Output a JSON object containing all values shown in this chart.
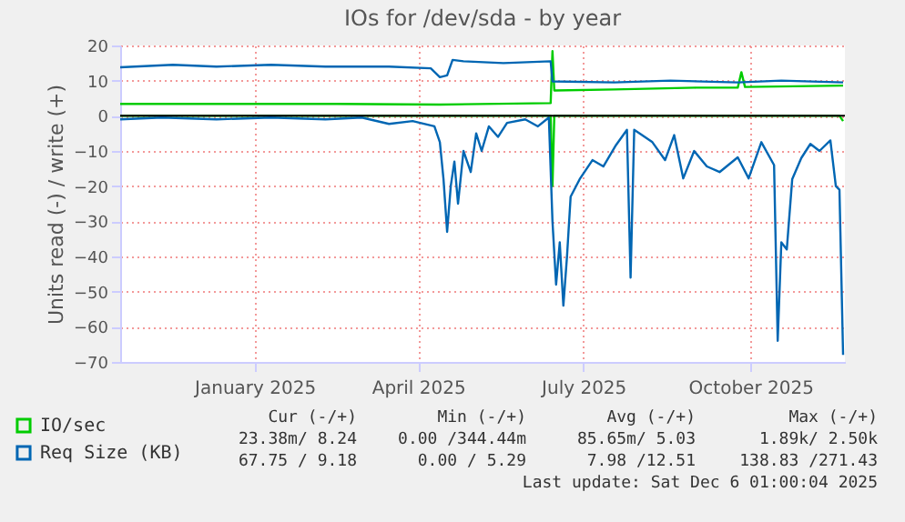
{
  "chart_data": {
    "type": "line",
    "title": "IOs for /dev/sda - by year",
    "ylabel": "Units read (-) / write (+)",
    "xlim": [
      "2024-11-02",
      "2025-12-06"
    ],
    "xticks": [
      {
        "value": "2025-01-15",
        "label": "January 2025"
      },
      {
        "value": "2025-04-15",
        "label": "April 2025"
      },
      {
        "value": "2025-07-15",
        "label": "July 2025"
      },
      {
        "value": "2025-10-15",
        "label": "October 2025"
      }
    ],
    "ylim": [
      -70,
      20
    ],
    "yticks": [
      -70,
      -60,
      -50,
      -40,
      -30,
      -20,
      -10,
      0,
      10,
      20
    ],
    "grid": true,
    "legend": "bottom",
    "marker": "none",
    "line_style": "solid",
    "ref_lines": [
      {
        "axis": "y",
        "value": 0,
        "color": "#000000"
      }
    ],
    "series": [
      {
        "name": "IO/sec",
        "color": "#00cc00",
        "x": [
          "2024-11-02",
          "2025-03-01",
          "2025-04-27",
          "2025-06-27",
          "2025-06-28",
          "2025-06-29",
          "2025-08-01",
          "2025-09-15",
          "2025-10-08",
          "2025-10-10",
          "2025-10-12",
          "2025-12-05"
        ],
        "values": [
          3.4,
          3.4,
          3.2,
          3.6,
          18.4,
          7.2,
          7.5,
          8,
          8,
          12.4,
          8.2,
          8.6
        ]
      },
      {
        "color": "#00cc00",
        "x": [
          "2024-11-02",
          "2025-06-27",
          "2025-06-28",
          "2025-06-29",
          "2025-12-03",
          "2025-12-05"
        ],
        "values": [
          0,
          0,
          -20,
          0,
          0,
          -1.5
        ]
      },
      {
        "name": "Req Size (KB)",
        "color": "#0066b3",
        "x": [
          "2024-11-02",
          "2024-12-01",
          "2024-12-25",
          "2025-01-24",
          "2025-02-23",
          "2025-03-30",
          "2025-04-22",
          "2025-04-27",
          "2025-05-01",
          "2025-05-04",
          "2025-05-10",
          "2025-06-01",
          "2025-06-27",
          "2025-06-28",
          "2025-08-01",
          "2025-09-01",
          "2025-10-08",
          "2025-11-01",
          "2025-12-05"
        ],
        "values": [
          13.8,
          14.5,
          14,
          14.5,
          14,
          14,
          13.5,
          11,
          11.5,
          15.9,
          15.5,
          15,
          15.5,
          9.8,
          9.5,
          10,
          9.5,
          10,
          9.5
        ]
      },
      {
        "color": "#0066b3",
        "x": [
          "2024-11-02",
          "2024-11-25",
          "2024-12-25",
          "2025-01-24",
          "2025-02-23",
          "2025-03-15",
          "2025-03-30",
          "2025-04-12",
          "2025-04-24",
          "2025-04-27",
          "2025-04-29",
          "2025-05-01",
          "2025-05-03",
          "2025-05-05",
          "2025-05-07",
          "2025-05-10",
          "2025-05-14",
          "2025-05-17",
          "2025-05-20",
          "2025-05-24",
          "2025-05-29",
          "2025-06-03",
          "2025-06-13",
          "2025-06-20",
          "2025-06-26",
          "2025-06-28",
          "2025-06-30",
          "2025-07-02",
          "2025-07-04",
          "2025-07-06",
          "2025-07-08",
          "2025-07-13",
          "2025-07-20",
          "2025-07-26",
          "2025-08-02",
          "2025-08-08",
          "2025-08-10",
          "2025-08-12",
          "2025-08-15",
          "2025-08-22",
          "2025-08-29",
          "2025-09-03",
          "2025-09-08",
          "2025-09-14",
          "2025-09-21",
          "2025-09-28",
          "2025-10-08",
          "2025-10-14",
          "2025-10-21",
          "2025-10-28",
          "2025-10-30",
          "2025-11-01",
          "2025-11-04",
          "2025-11-07",
          "2025-11-12",
          "2025-11-17",
          "2025-11-22",
          "2025-11-28",
          "2025-12-01",
          "2025-12-03",
          "2025-12-05"
        ],
        "values": [
          -1,
          -0.5,
          -1,
          -0.5,
          -1,
          -0.5,
          -2.3,
          -1.5,
          -3,
          -7.5,
          -18,
          -33,
          -20,
          -13,
          -25,
          -10,
          -16,
          -5,
          -10,
          -3,
          -6,
          -2,
          -1,
          -3,
          -0.5,
          -30,
          -48,
          -36,
          -54,
          -40,
          -23,
          -18,
          -12.6,
          -14.4,
          -8.3,
          -4,
          -46,
          -4,
          -5,
          -7.5,
          -12.6,
          -5.5,
          -17.8,
          -10,
          -14.4,
          -16,
          -11.8,
          -17.8,
          -7.5,
          -14,
          -64,
          -36,
          -38,
          -18,
          -12,
          -8,
          -10,
          -7,
          -20,
          -21,
          -68
        ]
      }
    ],
    "annotations": [
      "Cur (-/+)",
      "Min (-/+)",
      "Avg (-/+)",
      "Max (-/+)",
      "23.38m/ 8.24",
      "0.00 /344.44m",
      "85.65m/ 5.03",
      "1.89k/ 2.50k",
      "67.75 / 9.18",
      "0.00 / 5.29",
      "7.98 /12.51",
      "138.83 /271.43",
      "Last update: Sat Dec  6 01:00:04 2025"
    ]
  }
}
